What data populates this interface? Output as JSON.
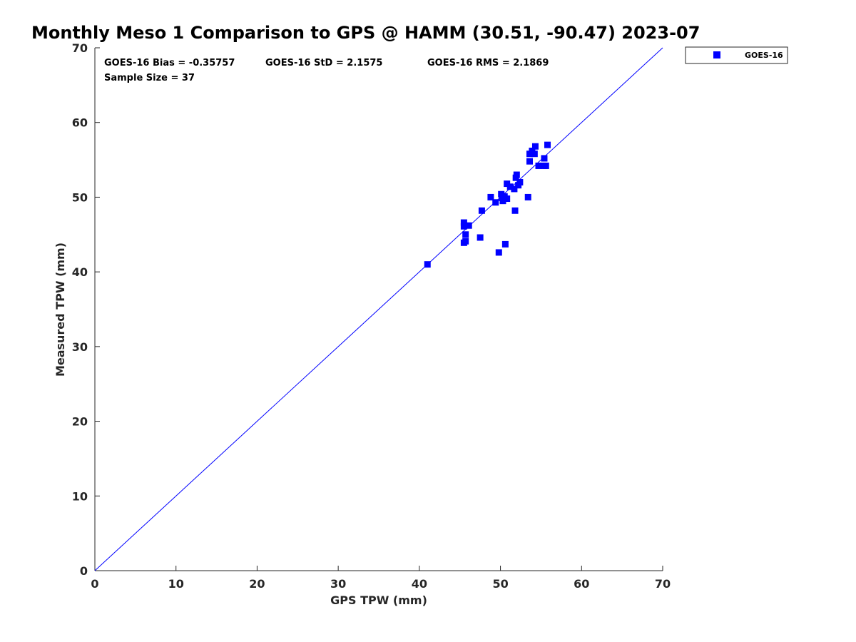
{
  "chart_data": {
    "type": "scatter",
    "title": "Monthly Meso 1 Comparison to GPS @ HAMM (30.51, -90.47) 2023-07",
    "xlabel": "GPS TPW (mm)",
    "ylabel": "Measured TPW (mm)",
    "xlim": [
      0,
      70
    ],
    "ylim": [
      0,
      70
    ],
    "xticks": [
      "0",
      "10",
      "20",
      "30",
      "40",
      "50",
      "60",
      "70"
    ],
    "yticks": [
      "0",
      "10",
      "20",
      "30",
      "40",
      "50",
      "60",
      "70"
    ],
    "grid": false,
    "legend_position": "outside-top-right",
    "reference_line": {
      "from": [
        0,
        0
      ],
      "to": [
        70,
        70
      ],
      "color": "#0000ff"
    },
    "stats": {
      "bias": "GOES-16 Bias = -0.35757",
      "std": "GOES-16 StD = 2.1575",
      "rms": "GOES-16 RMS = 2.1869",
      "sample": "Sample Size = 37"
    },
    "series": [
      {
        "name": "GOES-16",
        "color": "#0000ff",
        "marker": "square",
        "points": [
          [
            41.0,
            41.0
          ],
          [
            45.5,
            46.6
          ],
          [
            45.5,
            46.1
          ],
          [
            45.5,
            43.9
          ],
          [
            45.7,
            44.1
          ],
          [
            45.7,
            45.0
          ],
          [
            46.1,
            46.2
          ],
          [
            47.5,
            44.6
          ],
          [
            47.7,
            48.2
          ],
          [
            48.8,
            50.0
          ],
          [
            49.4,
            49.3
          ],
          [
            49.8,
            42.6
          ],
          [
            50.1,
            50.4
          ],
          [
            50.3,
            49.5
          ],
          [
            50.5,
            50.1
          ],
          [
            50.6,
            43.7
          ],
          [
            50.8,
            49.8
          ],
          [
            50.8,
            51.8
          ],
          [
            51.2,
            51.4
          ],
          [
            51.7,
            51.1
          ],
          [
            51.8,
            48.2
          ],
          [
            51.9,
            52.6
          ],
          [
            52.0,
            53.0
          ],
          [
            52.4,
            52.0
          ],
          [
            53.4,
            50.0
          ],
          [
            53.6,
            54.8
          ],
          [
            53.6,
            55.8
          ],
          [
            53.9,
            56.2
          ],
          [
            54.2,
            55.8
          ],
          [
            54.3,
            56.8
          ],
          [
            54.7,
            54.2
          ],
          [
            55.3,
            54.2
          ],
          [
            55.4,
            55.2
          ],
          [
            55.6,
            54.2
          ],
          [
            55.8,
            57.0
          ],
          [
            52.2,
            51.6
          ],
          [
            50.2,
            49.9
          ]
        ]
      }
    ]
  }
}
